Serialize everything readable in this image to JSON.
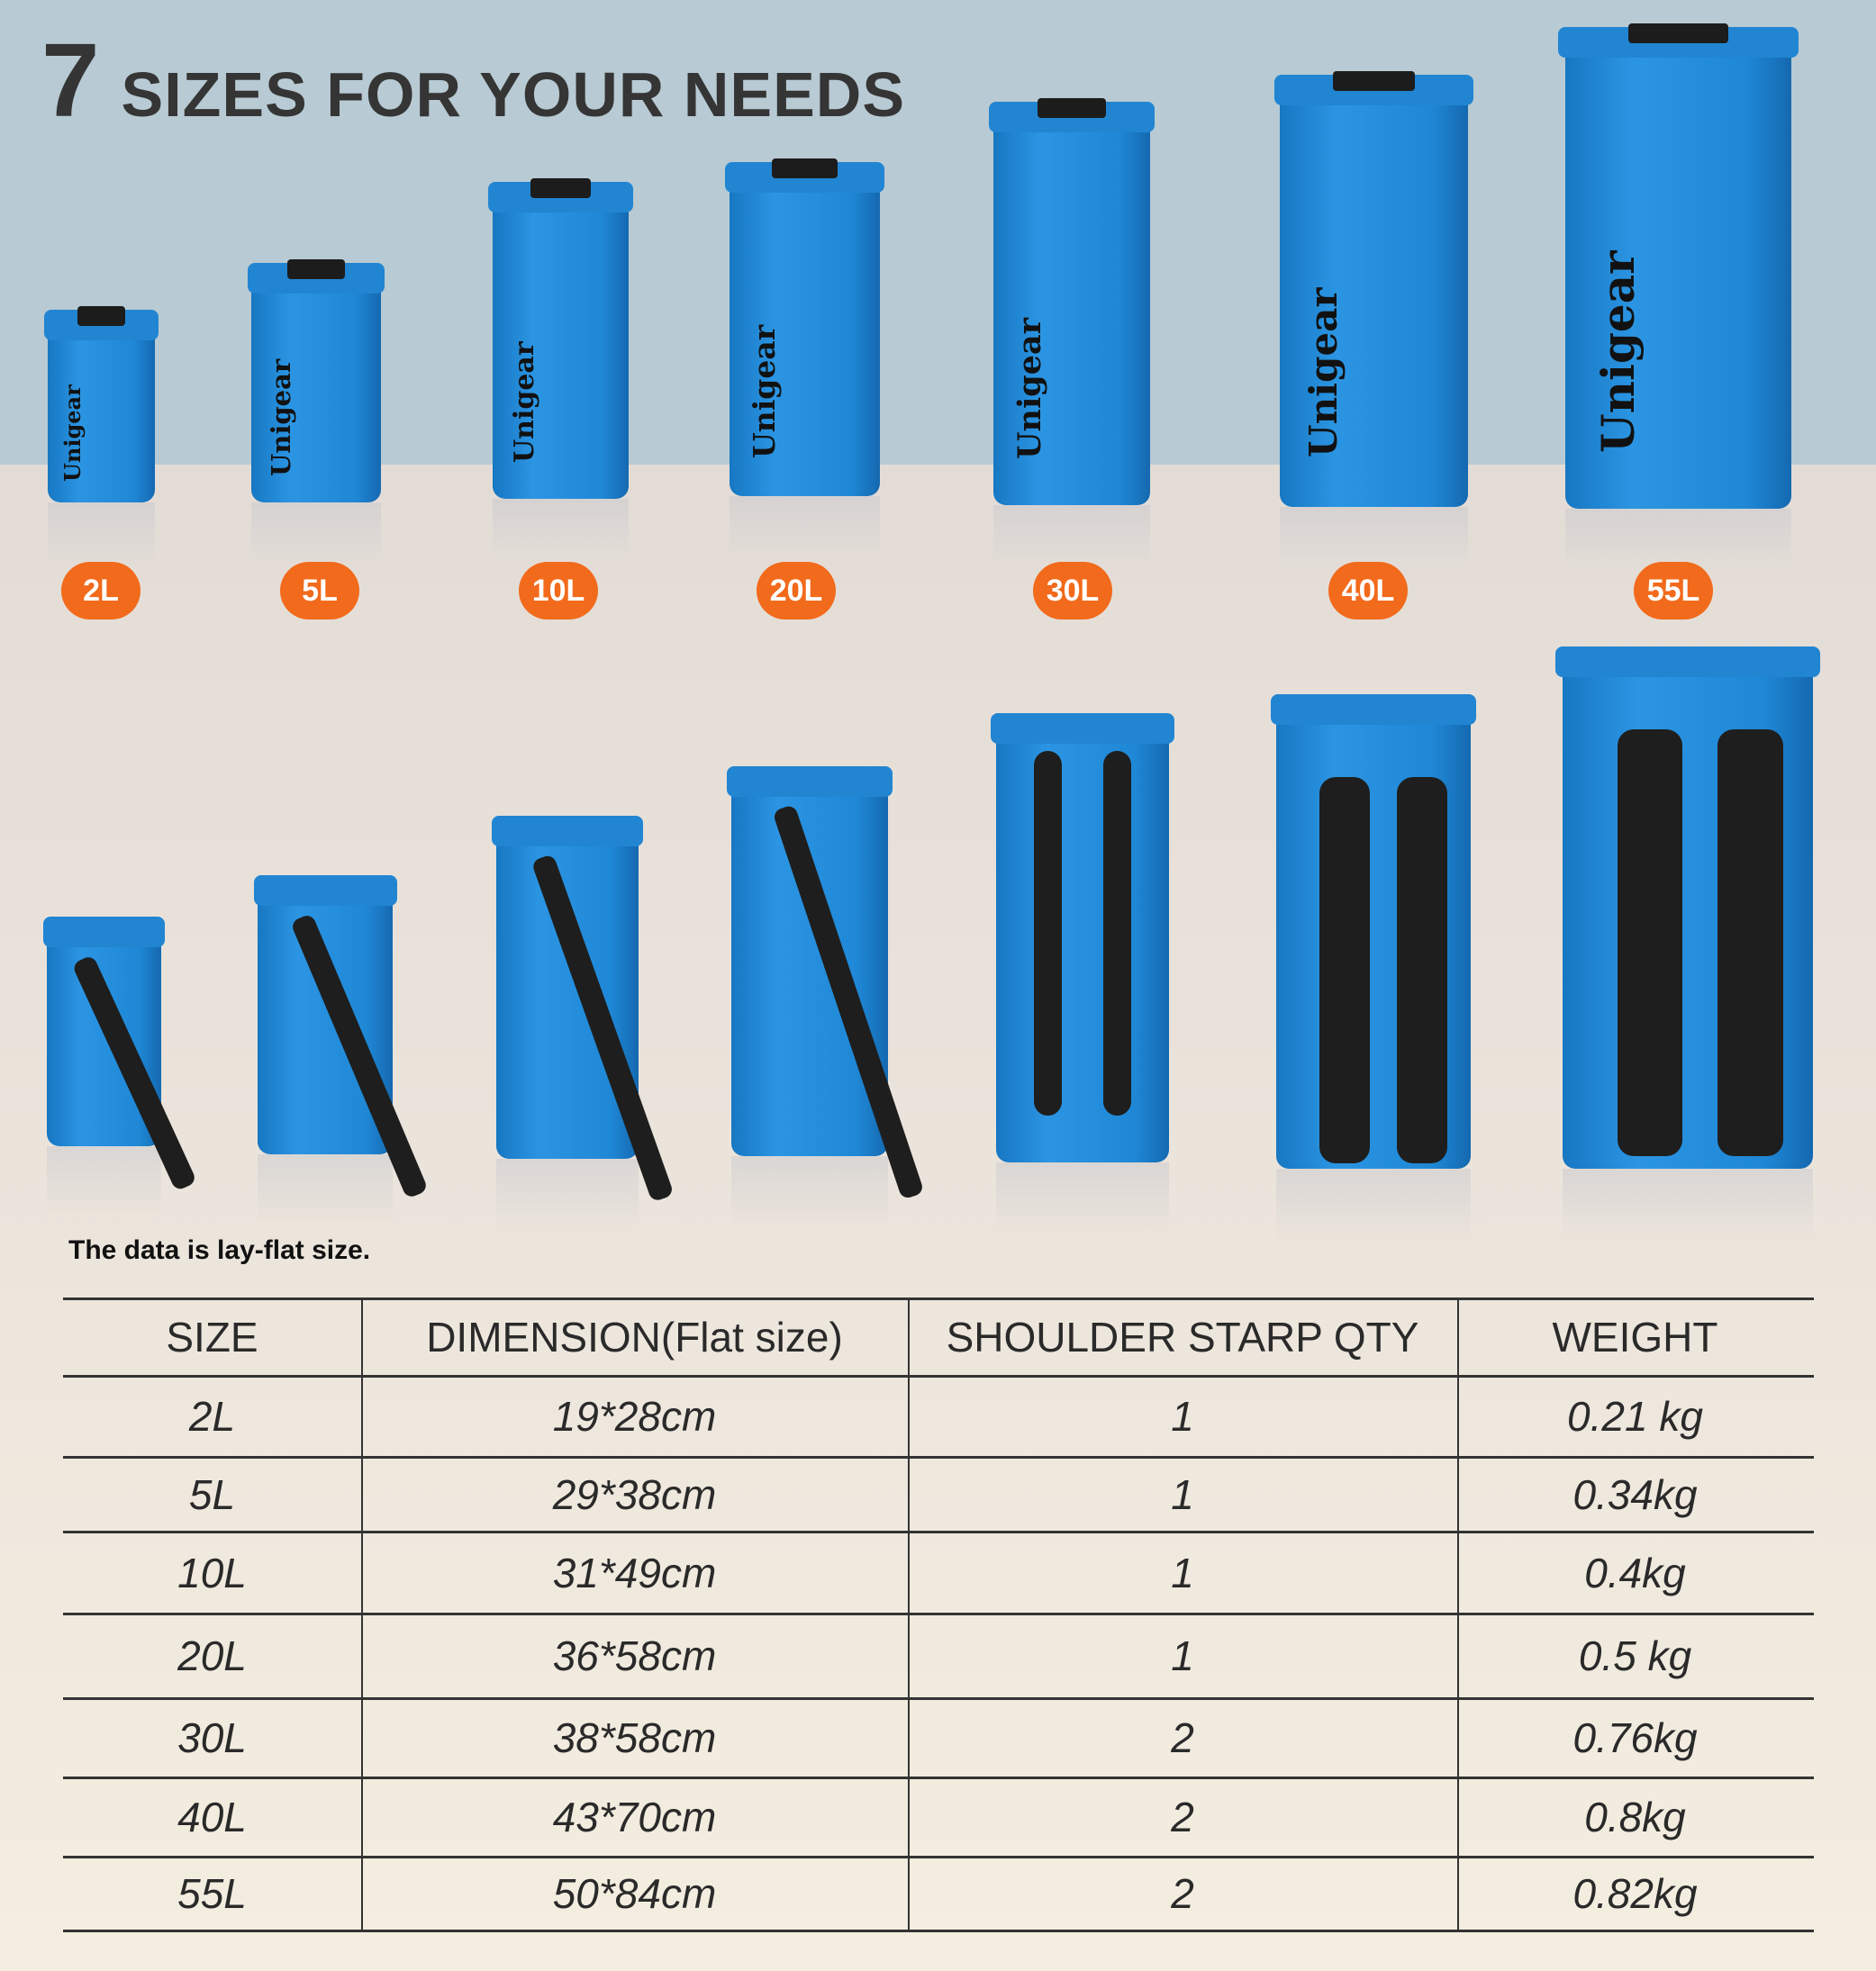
{
  "title": {
    "number": "7",
    "text": "SIZES FOR YOUR NEEDS"
  },
  "brand": "Unigear",
  "colors": {
    "bag": "#1f88d6",
    "badge": "#f26a1b",
    "top_background": "#b8cad3"
  },
  "sizes": [
    "2L",
    "5L",
    "10L",
    "20L",
    "30L",
    "40L",
    "55L"
  ],
  "note": "The data is lay-flat size.",
  "table": {
    "headers": [
      "SIZE",
      "DIMENSION(Flat size)",
      "SHOULDER STARP QTY",
      "WEIGHT"
    ],
    "rows": [
      [
        "2L",
        "19*28cm",
        "1",
        "0.21 kg"
      ],
      [
        "5L",
        "29*38cm",
        "1",
        "0.34kg"
      ],
      [
        "10L",
        "31*49cm",
        "1",
        "0.4kg"
      ],
      [
        "20L",
        "36*58cm",
        "1",
        "0.5 kg"
      ],
      [
        "30L",
        "38*58cm",
        "2",
        "0.76kg"
      ],
      [
        "40L",
        "43*70cm",
        "2",
        "0.8kg"
      ],
      [
        "55L",
        "50*84cm",
        "2",
        "0.82kg"
      ]
    ]
  }
}
